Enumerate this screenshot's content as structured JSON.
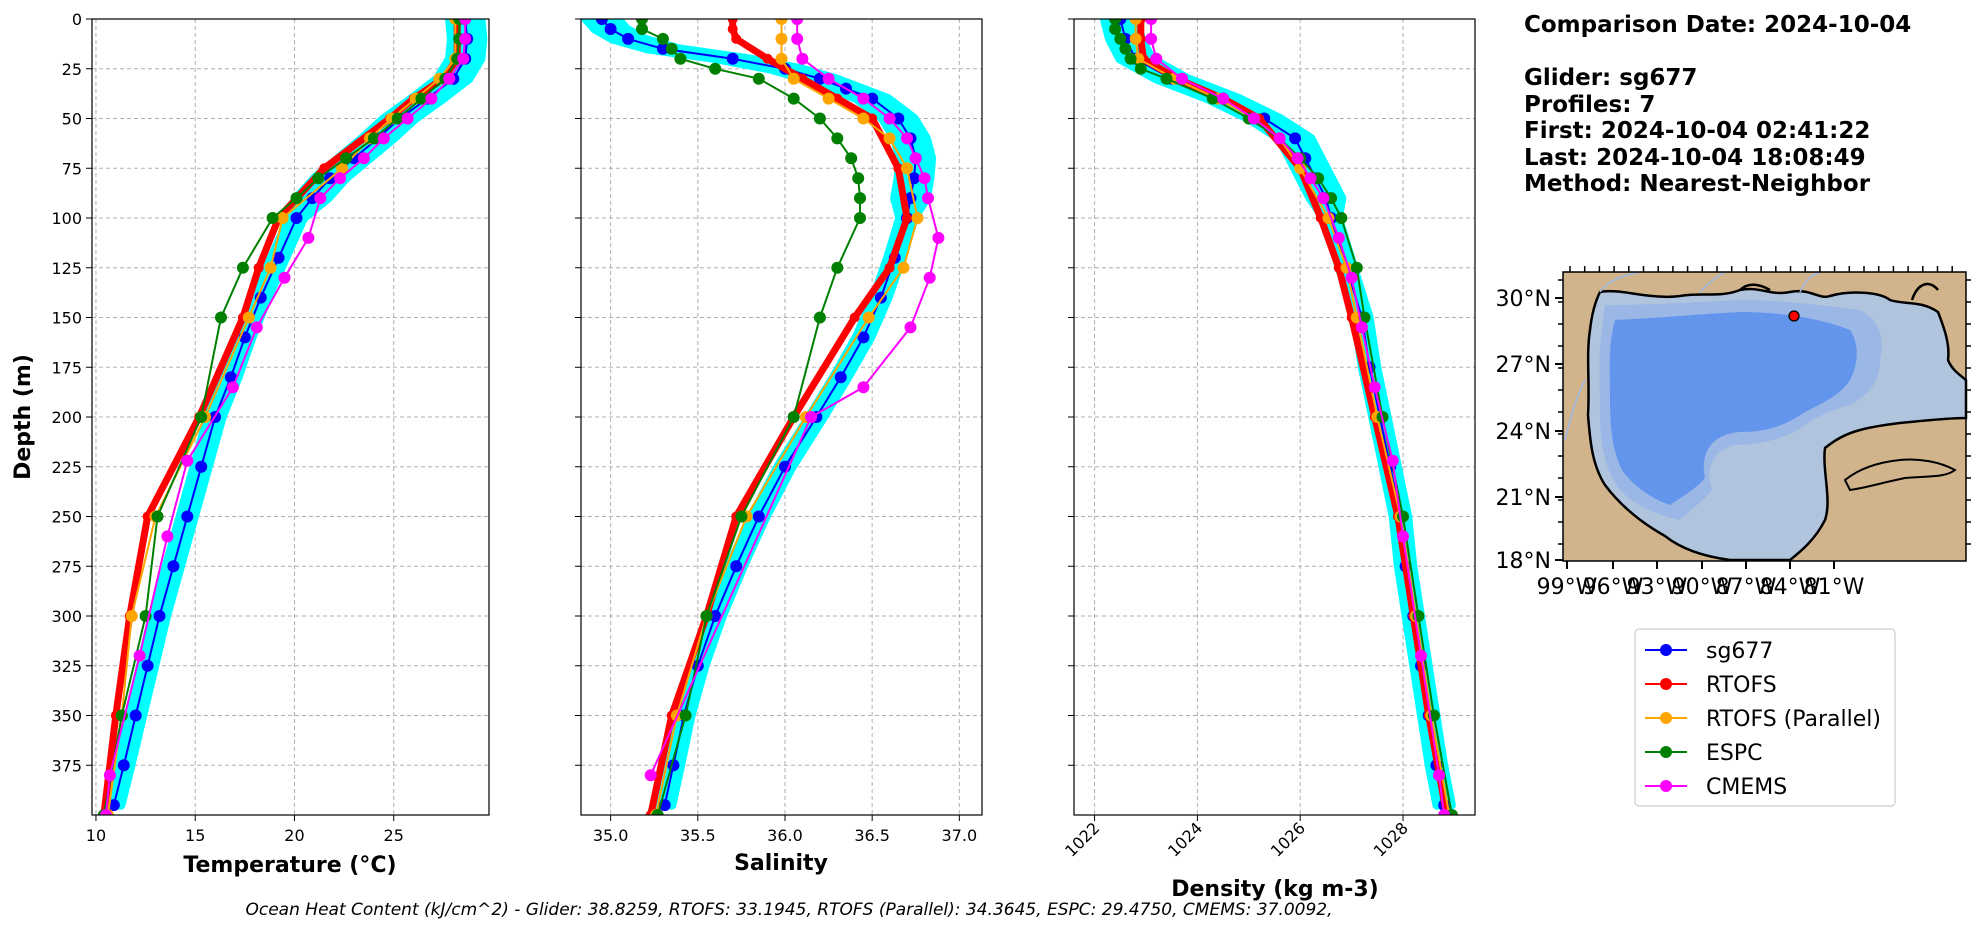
{
  "info": {
    "comparison_date": "Comparison Date: 2024-10-04",
    "glider": "Glider: sg677",
    "profiles": "Profiles: 7",
    "first": "First: 2024-10-04 02:41:22",
    "last": "Last: 2024-10-04 18:08:49",
    "method": "Method: Nearest-Neighbor"
  },
  "footer": "Ocean Heat Content (kJ/cm^2) - Glider: 38.8259,  RTOFS: 33.1945,  RTOFS (Parallel): 34.3645,  ESPC: 29.4750,  CMEMS: 37.0092,",
  "legend": [
    {
      "name": "sg677",
      "color": "#0000ff"
    },
    {
      "name": "RTOFS",
      "color": "#ff0000"
    },
    {
      "name": "RTOFS (Parallel)",
      "color": "#ffa500"
    },
    {
      "name": "ESPC",
      "color": "#008000"
    },
    {
      "name": "CMEMS",
      "color": "#ff00ff"
    }
  ],
  "colors": {
    "glider_cloud": "#00ffff",
    "land": "#d2b48c",
    "shelf": "#b0c4de",
    "mid": "#9bb7e6",
    "deep": "#6495ed",
    "grid": "#b0b0b0"
  },
  "chart_data": [
    {
      "type": "line",
      "xlabel": "Temperature (°C)",
      "ylabel": "Depth (m)",
      "xlim": [
        9.8,
        29.8
      ],
      "ylim": [
        400,
        0
      ],
      "xticks": [
        10,
        15,
        20,
        25
      ],
      "yticks": [
        0,
        25,
        50,
        75,
        100,
        125,
        150,
        175,
        200,
        225,
        250,
        275,
        300,
        325,
        350,
        375
      ],
      "grid": true,
      "series": [
        {
          "name": "sg677",
          "depth": [
            0,
            10,
            20,
            30,
            40,
            50,
            60,
            70,
            80,
            90,
            100,
            120,
            140,
            160,
            180,
            200,
            225,
            250,
            275,
            300,
            325,
            350,
            375,
            395
          ],
          "values": [
            28.6,
            28.7,
            28.6,
            28.0,
            26.7,
            25.3,
            24.2,
            23.0,
            21.8,
            20.9,
            20.1,
            19.2,
            18.3,
            17.5,
            16.8,
            16.0,
            15.3,
            14.6,
            13.9,
            13.2,
            12.6,
            12.0,
            11.4,
            10.9
          ]
        },
        {
          "name": "RTOFS",
          "depth": [
            0,
            20,
            30,
            40,
            50,
            75,
            100,
            125,
            150,
            200,
            250,
            300,
            350,
            400
          ],
          "values": [
            28.2,
            28.2,
            27.5,
            26.0,
            24.8,
            21.5,
            19.2,
            18.2,
            17.4,
            15.2,
            12.6,
            11.7,
            11.0,
            10.4
          ]
        },
        {
          "name": "RTOFS (Parallel)",
          "depth": [
            0,
            20,
            30,
            40,
            50,
            60,
            75,
            100,
            125,
            150,
            200,
            250,
            300,
            350,
            400
          ],
          "values": [
            28.1,
            28.1,
            27.3,
            26.1,
            24.9,
            23.8,
            22.4,
            19.4,
            18.8,
            17.7,
            15.5,
            13.0,
            11.8,
            11.3,
            10.6
          ]
        },
        {
          "name": "ESPC",
          "depth": [
            0,
            10,
            20,
            30,
            40,
            50,
            60,
            70,
            80,
            90,
            100,
            125,
            150,
            200,
            250,
            300,
            350,
            400
          ],
          "values": [
            28.3,
            28.3,
            28.2,
            27.6,
            26.4,
            25.2,
            24.0,
            22.6,
            21.2,
            20.1,
            18.9,
            17.4,
            16.3,
            15.3,
            13.1,
            12.5,
            11.3,
            10.4
          ]
        },
        {
          "name": "CMEMS",
          "depth": [
            0,
            10,
            20,
            30,
            40,
            50,
            60,
            70,
            80,
            90,
            110,
            130,
            155,
            185,
            222,
            260,
            320,
            380,
            400
          ],
          "values": [
            28.6,
            28.6,
            28.5,
            27.8,
            26.9,
            25.7,
            24.5,
            23.5,
            22.3,
            21.3,
            20.7,
            19.5,
            18.1,
            16.9,
            14.6,
            13.6,
            12.2,
            10.7,
            10.5
          ]
        }
      ]
    },
    {
      "type": "line",
      "xlabel": "Salinity",
      "ylabel": "",
      "xlim": [
        34.83,
        37.13
      ],
      "ylim": [
        400,
        0
      ],
      "xticks": [
        35.0,
        35.5,
        36.0,
        36.5,
        37.0
      ],
      "yticks": [
        0,
        25,
        50,
        75,
        100,
        125,
        150,
        175,
        200,
        225,
        250,
        275,
        300,
        325,
        350,
        375
      ],
      "grid": true,
      "series": [
        {
          "name": "sg677",
          "depth": [
            0,
            5,
            10,
            15,
            20,
            25,
            30,
            35,
            40,
            50,
            60,
            70,
            80,
            90,
            100,
            120,
            140,
            160,
            180,
            200,
            225,
            250,
            275,
            300,
            325,
            350,
            375,
            395
          ],
          "values": [
            34.95,
            35.0,
            35.1,
            35.3,
            35.7,
            36.0,
            36.2,
            36.35,
            36.5,
            36.65,
            36.72,
            36.75,
            36.74,
            36.72,
            36.7,
            36.63,
            36.55,
            36.45,
            36.32,
            36.18,
            36.0,
            35.85,
            35.72,
            35.6,
            35.5,
            35.42,
            35.36,
            35.31
          ]
        },
        {
          "name": "RTOFS",
          "depth": [
            0,
            5,
            10,
            20,
            30,
            40,
            50,
            75,
            100,
            125,
            150,
            200,
            250,
            300,
            350,
            400
          ],
          "values": [
            35.7,
            35.7,
            35.72,
            35.9,
            36.1,
            36.3,
            36.5,
            36.65,
            36.7,
            36.6,
            36.4,
            36.05,
            35.72,
            35.55,
            35.35,
            35.23
          ]
        },
        {
          "name": "RTOFS (Parallel)",
          "depth": [
            0,
            10,
            20,
            30,
            40,
            50,
            60,
            75,
            100,
            125,
            150,
            200,
            250,
            300,
            350,
            400
          ],
          "values": [
            35.98,
            35.98,
            35.98,
            36.05,
            36.25,
            36.45,
            36.6,
            36.7,
            36.76,
            36.68,
            36.48,
            36.12,
            35.78,
            35.55,
            35.38,
            35.26
          ]
        },
        {
          "name": "ESPC",
          "depth": [
            0,
            5,
            10,
            15,
            20,
            25,
            30,
            40,
            50,
            60,
            70,
            80,
            90,
            100,
            125,
            150,
            200,
            250,
            300,
            350,
            400
          ],
          "values": [
            35.18,
            35.18,
            35.3,
            35.35,
            35.4,
            35.6,
            35.85,
            36.05,
            36.2,
            36.3,
            36.38,
            36.42,
            36.43,
            36.43,
            36.3,
            36.2,
            36.05,
            35.75,
            35.55,
            35.43,
            35.27
          ]
        },
        {
          "name": "CMEMS",
          "depth": [
            0,
            10,
            20,
            30,
            40,
            50,
            60,
            70,
            80,
            90,
            110,
            130,
            155,
            185,
            200,
            380
          ],
          "values": [
            36.07,
            36.07,
            36.1,
            36.25,
            36.45,
            36.6,
            36.7,
            36.75,
            36.8,
            36.82,
            36.88,
            36.83,
            36.72,
            36.45,
            36.15,
            35.23
          ]
        }
      ]
    },
    {
      "type": "line",
      "xlabel": "Density (kg m-3)",
      "ylabel": "",
      "xlim": [
        1021.6,
        1029.4
      ],
      "ylim": [
        400,
        0
      ],
      "xticks": [
        1022,
        1024,
        1026,
        1028
      ],
      "yticks": [
        0,
        25,
        50,
        75,
        100,
        125,
        150,
        175,
        200,
        225,
        250,
        275,
        300,
        325,
        350,
        375
      ],
      "grid": true,
      "series": [
        {
          "name": "sg677",
          "depth": [
            0,
            10,
            20,
            30,
            40,
            50,
            60,
            70,
            80,
            90,
            100,
            125,
            150,
            175,
            200,
            225,
            250,
            275,
            300,
            325,
            350,
            375,
            395
          ],
          "values": [
            1022.5,
            1022.6,
            1022.8,
            1023.5,
            1024.5,
            1025.3,
            1025.9,
            1026.1,
            1026.3,
            1026.5,
            1026.6,
            1026.9,
            1027.2,
            1027.35,
            1027.55,
            1027.75,
            1027.95,
            1028.05,
            1028.2,
            1028.35,
            1028.5,
            1028.65,
            1028.8
          ]
        },
        {
          "name": "RTOFS",
          "depth": [
            0,
            10,
            20,
            30,
            40,
            50,
            75,
            100,
            125,
            150,
            200,
            250,
            300,
            350,
            400
          ],
          "values": [
            1022.9,
            1022.9,
            1022.95,
            1023.6,
            1024.5,
            1025.2,
            1026.0,
            1026.4,
            1026.75,
            1027.0,
            1027.45,
            1027.9,
            1028.2,
            1028.5,
            1028.85
          ]
        },
        {
          "name": "RTOFS (Parallel)",
          "depth": [
            0,
            10,
            20,
            30,
            40,
            50,
            60,
            75,
            100,
            125,
            150,
            200,
            250,
            300,
            350,
            400
          ],
          "values": [
            1022.8,
            1022.8,
            1022.85,
            1023.55,
            1024.4,
            1025.1,
            1025.6,
            1026.0,
            1026.55,
            1026.9,
            1027.1,
            1027.5,
            1027.95,
            1028.25,
            1028.55,
            1028.9
          ]
        },
        {
          "name": "ESPC",
          "depth": [
            0,
            5,
            10,
            15,
            20,
            25,
            30,
            40,
            50,
            60,
            70,
            80,
            90,
            100,
            125,
            150,
            200,
            250,
            300,
            350,
            400
          ],
          "values": [
            1022.4,
            1022.4,
            1022.5,
            1022.6,
            1022.7,
            1022.9,
            1023.4,
            1024.3,
            1025.0,
            1025.6,
            1026.0,
            1026.35,
            1026.6,
            1026.8,
            1027.1,
            1027.25,
            1027.6,
            1028.0,
            1028.3,
            1028.6,
            1028.95
          ]
        },
        {
          "name": "CMEMS",
          "depth": [
            0,
            10,
            20,
            30,
            40,
            50,
            60,
            70,
            80,
            90,
            110,
            130,
            155,
            185,
            222,
            260,
            320,
            380,
            400
          ],
          "values": [
            1023.1,
            1023.1,
            1023.2,
            1023.7,
            1024.5,
            1025.1,
            1025.6,
            1025.95,
            1026.2,
            1026.45,
            1026.75,
            1027.0,
            1027.2,
            1027.45,
            1027.8,
            1028.0,
            1028.35,
            1028.7,
            1028.8
          ]
        }
      ]
    }
  ],
  "map": {
    "lat_ticks": [
      "30°N",
      "27°N",
      "24°N",
      "21°N",
      "18°N"
    ],
    "lon_ticks": [
      "99°W",
      "96°W",
      "93°W",
      "90°W",
      "87°W",
      "84°W",
      "81°W"
    ],
    "glider_marker_color": "#ff0000"
  }
}
